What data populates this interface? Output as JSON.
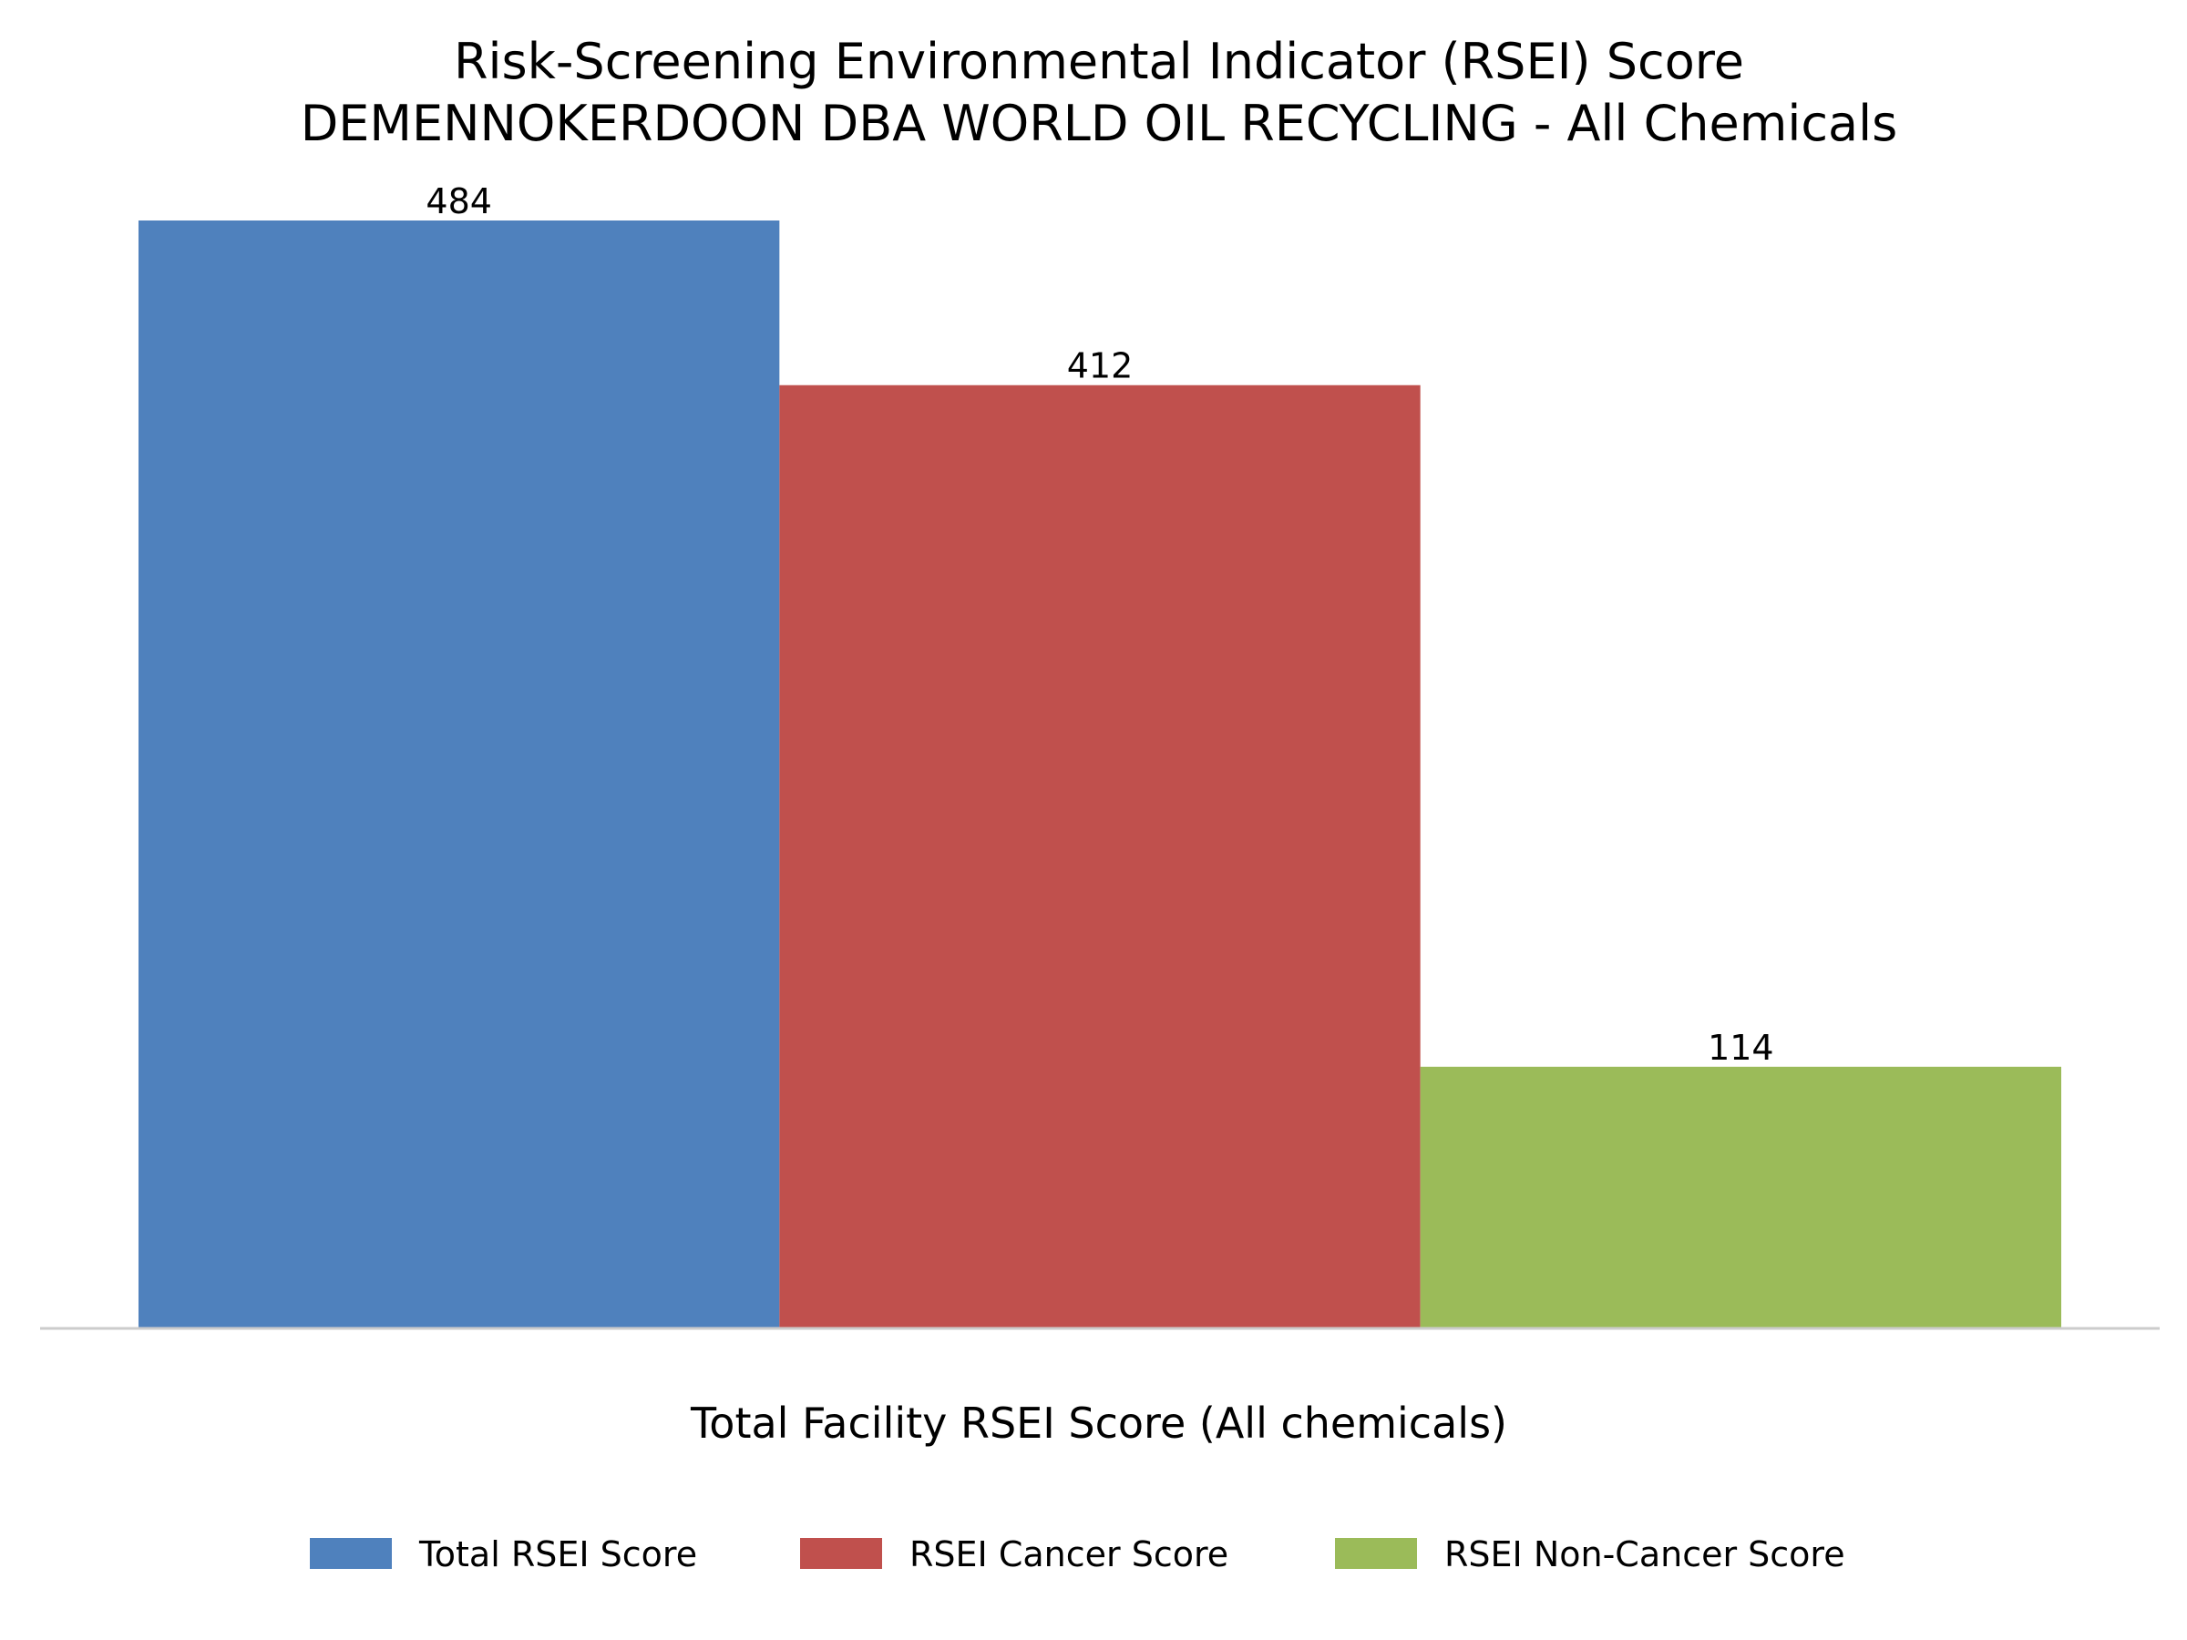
{
  "chart_data": {
    "type": "bar",
    "title": "Risk-Screening Environmental Indicator (RSEI) Score",
    "subtitle": "DEMENNOKERDOON DBA WORLD OIL RECYCLING - All Chemicals",
    "xlabel": "Total Facility RSEI Score (All chemicals)",
    "ylabel": "",
    "categories": [
      "Total Facility RSEI Score (All chemicals)"
    ],
    "series": [
      {
        "name": "Total RSEI Score",
        "values": [
          484
        ],
        "label": "484",
        "color": "#4f81bd"
      },
      {
        "name": "RSEI Cancer Score",
        "values": [
          412
        ],
        "label": "412",
        "color": "#c0504d"
      },
      {
        "name": "RSEI Non-Cancer Score",
        "values": [
          114
        ],
        "label": "114",
        "color": "#9bbb59"
      }
    ],
    "ylim": [
      0,
      484
    ],
    "grid": false,
    "legend": "bottom",
    "axis_color": "#cccccc"
  }
}
